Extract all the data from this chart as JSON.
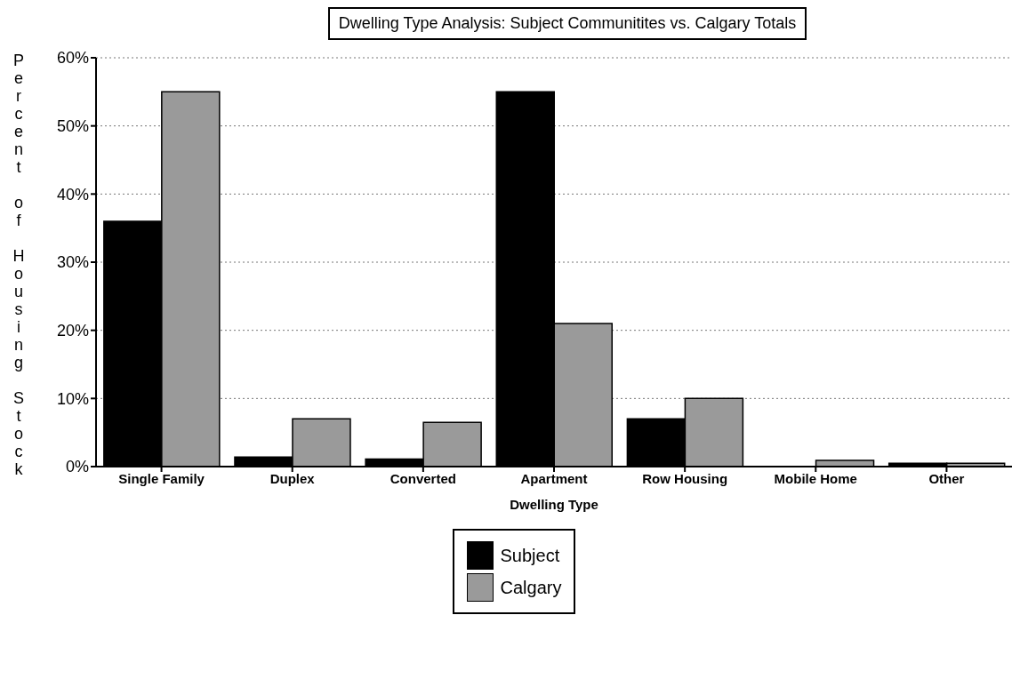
{
  "chart_data": {
    "type": "bar",
    "title": "Dwelling Type Analysis: Subject Communitites vs. Calgary Totals",
    "xlabel": "Dwelling Type",
    "ylabel": "Percent of Housing Stock",
    "categories": [
      "Single Family",
      "Duplex",
      "Converted",
      "Apartment",
      "Row Housing",
      "Mobile Home",
      "Other"
    ],
    "series": [
      {
        "name": "Subject",
        "color": "#000000",
        "values": [
          36,
          1.4,
          1.1,
          55,
          7,
          0,
          0.5
        ]
      },
      {
        "name": "Calgary",
        "color": "#9a9a9a",
        "values": [
          55,
          7,
          6.5,
          21,
          10,
          0.9,
          0.5
        ]
      }
    ],
    "ylim": [
      0,
      60
    ],
    "yticks": [
      {
        "value": 0,
        "label": "0%"
      },
      {
        "value": 10,
        "label": "10%"
      },
      {
        "value": 20,
        "label": "20%"
      },
      {
        "value": 30,
        "label": "30%"
      },
      {
        "value": 40,
        "label": "40%"
      },
      {
        "value": 50,
        "label": "50%"
      },
      {
        "value": 60,
        "label": "60%"
      }
    ],
    "grid": "y",
    "legend": "bottom"
  }
}
